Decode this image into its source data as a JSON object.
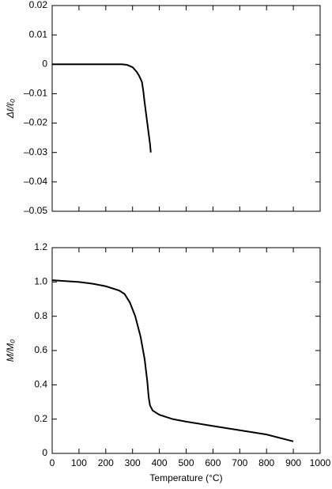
{
  "chart_data": [
    {
      "type": "line",
      "ylabel": "Δℓ/ℓ₀",
      "x": [
        0,
        100,
        200,
        260,
        280,
        300,
        315,
        325,
        335,
        340,
        345,
        355,
        365,
        368
      ],
      "series": [
        {
          "color": "#000000",
          "values": [
            0,
            0,
            0,
            0,
            -0.0002,
            -0.001,
            -0.0025,
            -0.004,
            -0.006,
            -0.009,
            -0.013,
            -0.02,
            -0.027,
            -0.03
          ]
        }
      ],
      "xlim": [
        0,
        1000
      ],
      "xticks": [
        0,
        100,
        200,
        300,
        400,
        500,
        600,
        700,
        800,
        900,
        1000
      ],
      "xtick_labels": false,
      "ylim": [
        -0.05,
        0.02
      ],
      "yticks": [
        {
          "value": -0.05,
          "label": "–0.05"
        },
        {
          "value": -0.04,
          "label": "–0.04"
        },
        {
          "value": -0.03,
          "label": "–0.03"
        },
        {
          "value": -0.02,
          "label": "–0.02"
        },
        {
          "value": -0.01,
          "label": "–0.01"
        },
        0,
        0.01,
        0.02
      ]
    },
    {
      "type": "line",
      "xlabel": "Temperature (°C)",
      "ylabel": "M/M₀",
      "x": [
        0,
        50,
        100,
        150,
        200,
        250,
        270,
        290,
        310,
        330,
        345,
        355,
        360,
        365,
        375,
        400,
        450,
        500,
        600,
        700,
        800,
        900
      ],
      "series": [
        {
          "color": "#000000",
          "values": [
            1.01,
            1.005,
            1.0,
            0.99,
            0.975,
            0.95,
            0.93,
            0.88,
            0.8,
            0.68,
            0.55,
            0.42,
            0.33,
            0.28,
            0.25,
            0.225,
            0.2,
            0.185,
            0.16,
            0.135,
            0.11,
            0.07
          ]
        }
      ],
      "xlim": [
        0,
        1000
      ],
      "xticks": [
        0,
        100,
        200,
        300,
        400,
        500,
        600,
        700,
        800,
        900,
        1000
      ],
      "xtick_labels": true,
      "ylim": [
        0,
        1.2
      ],
      "yticks": [
        0,
        0.2,
        0.4,
        0.6,
        0.8,
        {
          "value": 1.0,
          "label": "1.0"
        },
        1.2
      ]
    }
  ]
}
